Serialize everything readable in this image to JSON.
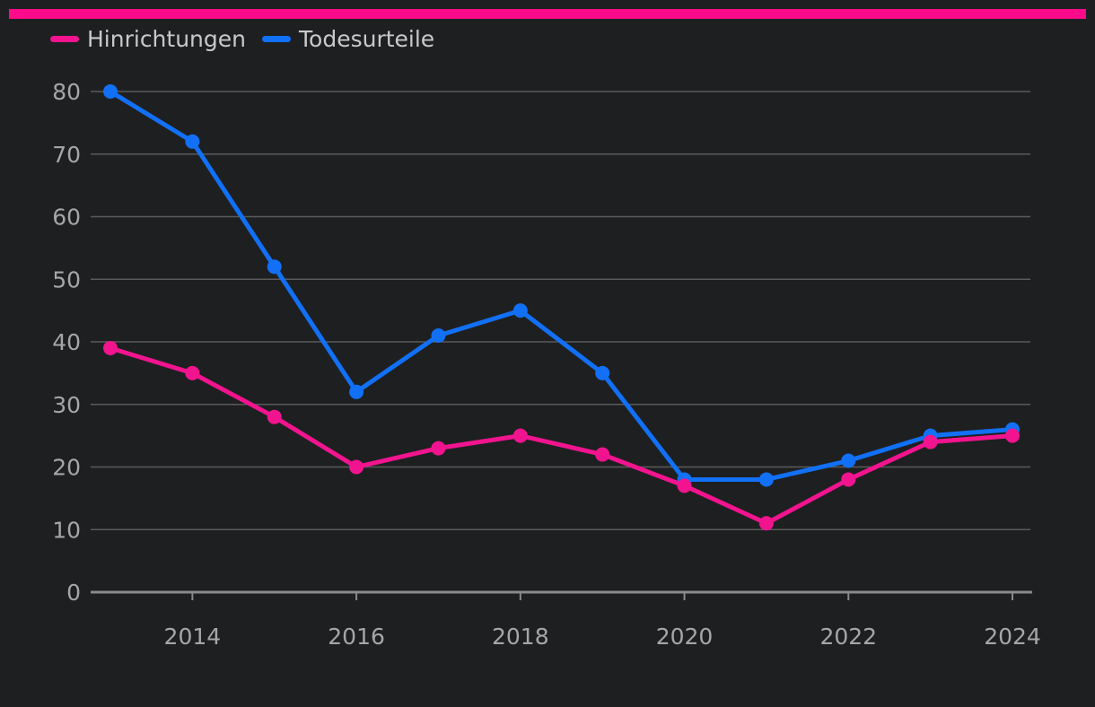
{
  "colors": {
    "background": "#1e1f21",
    "accent_bar": "#ff0a8a",
    "grid": "#5a5a5a",
    "axis": "#8a8a8a",
    "text": "#a6a6a6"
  },
  "chart_data": {
    "type": "line",
    "title": "",
    "xlabel": "",
    "ylabel": "",
    "x": [
      2013,
      2014,
      2015,
      2016,
      2017,
      2018,
      2019,
      2020,
      2021,
      2022,
      2023,
      2024
    ],
    "x_ticks": [
      2014,
      2016,
      2018,
      2020,
      2022,
      2024
    ],
    "y_ticks": [
      0,
      10,
      20,
      30,
      40,
      50,
      60,
      70,
      80
    ],
    "ylim": [
      0,
      80
    ],
    "xlim": [
      2013,
      2024
    ],
    "grid": true,
    "legend_position": "top-left",
    "series": [
      {
        "name": "Hinrichtungen",
        "color": "#f2148f",
        "values": [
          39,
          35,
          28,
          20,
          23,
          25,
          22,
          17,
          11,
          18,
          24,
          25
        ]
      },
      {
        "name": "Todesurteile",
        "color": "#1170f5",
        "values": [
          80,
          72,
          52,
          32,
          41,
          45,
          35,
          18,
          18,
          21,
          25,
          26
        ]
      }
    ]
  }
}
